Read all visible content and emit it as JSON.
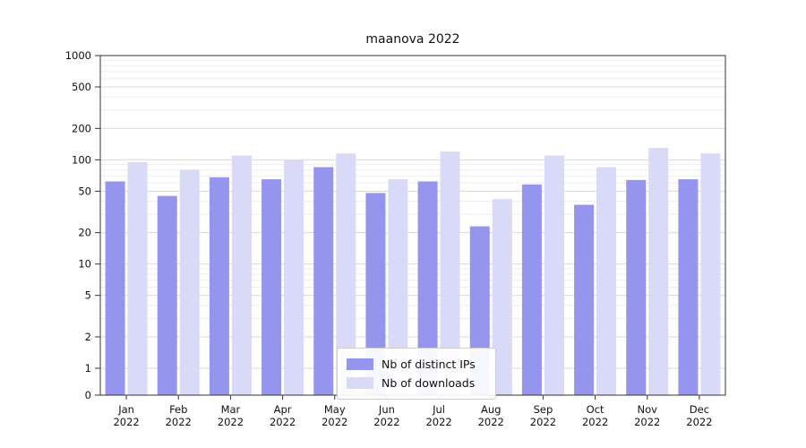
{
  "chart_data": {
    "type": "bar",
    "title": "maanova 2022",
    "xlabel": "",
    "ylabel": "",
    "scale": "symlog",
    "ylim": [
      0,
      1000
    ],
    "yticks": [
      0,
      1,
      2,
      5,
      10,
      20,
      50,
      100,
      200,
      500,
      1000
    ],
    "grid": "horizontal-major-and-minor",
    "legend_position": "bottom-center-inside",
    "categories": [
      "Jan",
      "Feb",
      "Mar",
      "Apr",
      "May",
      "Jun",
      "Jul",
      "Aug",
      "Sep",
      "Oct",
      "Nov",
      "Dec"
    ],
    "year": "2022",
    "series": [
      {
        "name": "Nb of distinct IPs",
        "color": "#9595ee",
        "values": [
          62,
          45,
          68,
          65,
          85,
          48,
          62,
          23,
          58,
          37,
          64,
          65
        ]
      },
      {
        "name": "Nb of downloads",
        "color": "#d9d9f8",
        "values": [
          95,
          80,
          110,
          100,
          115,
          65,
          120,
          42,
          110,
          85,
          130,
          115
        ]
      }
    ]
  },
  "colors": {
    "grid_major": "#d9d9d9",
    "grid_minor": "#eeeeee",
    "frame": "#333333",
    "tick_text": "#111111"
  }
}
